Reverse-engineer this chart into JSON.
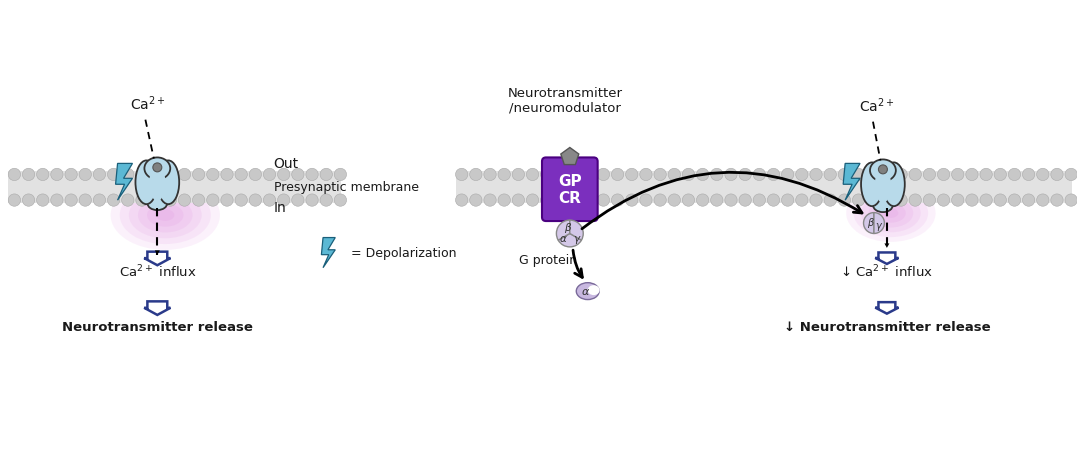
{
  "bg_color": "#ffffff",
  "membrane_color": "#d4d4d4",
  "membrane_dot_color": "#c0c0c0",
  "channel_fill": "#b8daea",
  "channel_stroke": "#333333",
  "lightning_fill": "#5bb8d4",
  "lightning_stroke": "#1a5f7a",
  "purple_glow": "#cc55cc",
  "gpcr_fill": "#7b2fbe",
  "gprotein_fill": "#d4c8e8",
  "alpha_fill": "#c8b8e0",
  "arrow_color": "#1a1a1a",
  "down_arrow_fill": "#ffffff",
  "down_arrow_stroke": "#2a3a8a",
  "text_color": "#1a1a1a",
  "ca_label": "Ca$^{2+}$",
  "out_label": "Out",
  "in_label": "In",
  "membrane_label": "Presynaptic membrane",
  "neurotrans_label": "Neurotransmitter\n/neuromodulator",
  "gprotein_label": "G protein",
  "depo_label": "= Depolarization",
  "ca_influx_label1": "Ca$^{2+}$ influx",
  "ca_influx_label2": "↓ Ca$^{2+}$ influx",
  "nt_release_label1": "Neurotransmitter release",
  "nt_release_label2": "↓ Neurotransmitter release",
  "gpcr_text": "GP\nCR"
}
